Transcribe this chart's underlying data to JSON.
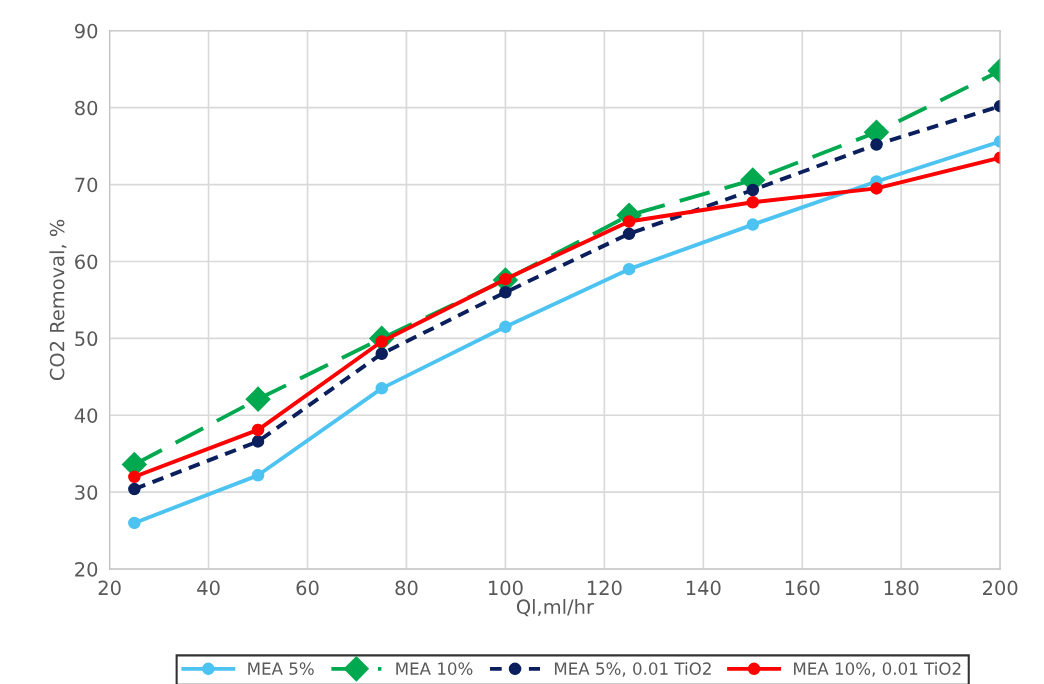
{
  "chart_data": {
    "type": "line",
    "xlabel": "Ql,ml/hr",
    "ylabel": "CO2 Removal, %",
    "x": [
      25,
      50,
      75,
      100,
      125,
      150,
      175,
      200
    ],
    "series": [
      {
        "name": "MEA 5%",
        "color": "#4cc3f1",
        "marker": "circle",
        "line_style": "solid",
        "values": [
          26.0,
          32.2,
          43.5,
          51.5,
          59.0,
          64.8,
          70.4,
          75.6
        ]
      },
      {
        "name": "MEA 10%",
        "color": "#00a84f",
        "marker": "diamond",
        "line_style": "dashed",
        "values": [
          33.6,
          42.1,
          50.0,
          57.6,
          66.0,
          70.6,
          76.8,
          84.8
        ]
      },
      {
        "name": "MEA 5%, 0.01 TiO2",
        "color": "#0a1f5c",
        "marker": "circle",
        "line_style": "dotted",
        "values": [
          30.4,
          36.6,
          48.0,
          56.0,
          63.6,
          69.3,
          75.2,
          80.2
        ]
      },
      {
        "name": "MEA 10%, 0.01 TiO2",
        "color": "#ff0000",
        "marker": "circle",
        "line_style": "solid",
        "values": [
          32.0,
          38.1,
          49.6,
          57.7,
          65.2,
          67.7,
          69.5,
          73.5
        ]
      }
    ],
    "xlim": [
      20,
      200
    ],
    "xticks": [
      20,
      40,
      60,
      80,
      100,
      120,
      140,
      160,
      180,
      200
    ],
    "ylim": [
      20,
      90
    ],
    "yticks": [
      20,
      30,
      40,
      50,
      60,
      70,
      80,
      90
    ],
    "grid": true,
    "legend": "bottom"
  }
}
